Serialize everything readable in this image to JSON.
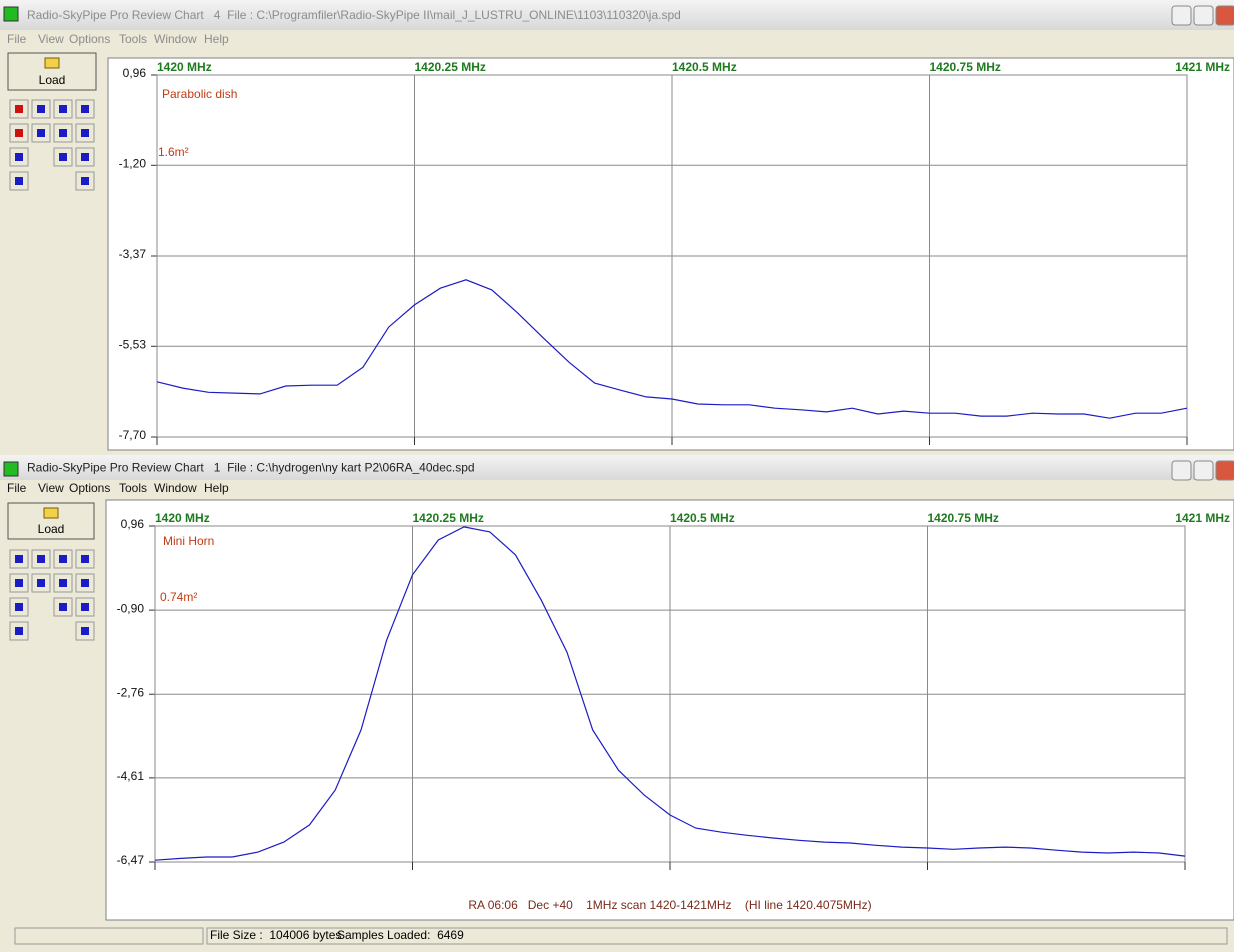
{
  "windows": [
    {
      "title": "Radio-SkyPipe Pro Review Chart   4  File : C:\\Programfiler\\Radio-SkyPipe II\\mail_J_LUSTRU_ONLINE\\1103\\110320\\ja.spd",
      "menu": [
        "File",
        "View",
        "Options",
        "Tools",
        "Window",
        "Help"
      ],
      "load_button": "Load"
    },
    {
      "title": "Radio-SkyPipe Pro Review Chart   1  File : C:\\hydrogen\\ny kart P2\\06RA_40dec.spd",
      "menu": [
        "File",
        "View",
        "Options",
        "Tools",
        "Window",
        "Help"
      ],
      "load_button": "Load"
    }
  ],
  "chart_data": [
    {
      "type": "line",
      "annotations": [
        "Parabolic dish",
        "1.6m²"
      ],
      "x": [
        1420,
        1420.025,
        1420.05,
        1420.075,
        1420.1,
        1420.125,
        1420.15,
        1420.175,
        1420.2,
        1420.225,
        1420.25,
        1420.275,
        1420.3,
        1420.325,
        1420.35,
        1420.375,
        1420.4,
        1420.425,
        1420.45,
        1420.475,
        1420.5,
        1420.525,
        1420.55,
        1420.575,
        1420.6,
        1420.625,
        1420.65,
        1420.675,
        1420.7,
        1420.725,
        1420.75,
        1420.775,
        1420.8,
        1420.825,
        1420.85,
        1420.875,
        1420.9,
        1420.925,
        1420.95,
        1420.975,
        1421
      ],
      "series": [
        {
          "color": "#1c1cc4",
          "values": [
            -6.38,
            -6.53,
            -6.63,
            -6.65,
            -6.67,
            -6.48,
            -6.46,
            -6.46,
            -6.03,
            -5.07,
            -4.54,
            -4.14,
            -3.94,
            -4.18,
            -4.73,
            -5.33,
            -5.91,
            -6.41,
            -6.58,
            -6.74,
            -6.79,
            -6.91,
            -6.93,
            -6.93,
            -7.01,
            -7.05,
            -7.1,
            -7.01,
            -7.15,
            -7.08,
            -7.13,
            -7.13,
            -7.2,
            -7.2,
            -7.13,
            -7.15,
            -7.15,
            -7.25,
            -7.13,
            -7.13,
            -7.01
          ]
        }
      ],
      "xlim": [
        1420,
        1421
      ],
      "xticks": [
        {
          "value": 1420,
          "label": "1420 MHz"
        },
        {
          "value": 1420.25,
          "label": "1420.25 MHz"
        },
        {
          "value": 1420.5,
          "label": "1420.5 MHz"
        },
        {
          "value": 1420.75,
          "label": "1420.75 MHz"
        },
        {
          "value": 1421,
          "label": "1421 MHz"
        }
      ],
      "ylim": [
        -7.7,
        0.96
      ],
      "yticks": [
        {
          "value": 0.96,
          "label": "0,96"
        },
        {
          "value": -1.2,
          "label": "-1,20"
        },
        {
          "value": -3.37,
          "label": "-3,37"
        },
        {
          "value": -5.53,
          "label": "-5,53"
        },
        {
          "value": -7.7,
          "label": "-7,70"
        }
      ],
      "grid": true
    },
    {
      "type": "line",
      "annotations": [
        "Mini Horn",
        "0.74m²"
      ],
      "footer": "RA 06:06   Dec +40    1MHz scan 1420-1421MHz    (HI line 1420.4075MHz)",
      "x": [
        1420,
        1420.025,
        1420.05,
        1420.075,
        1420.1,
        1420.125,
        1420.15,
        1420.175,
        1420.2,
        1420.225,
        1420.25,
        1420.275,
        1420.3,
        1420.325,
        1420.35,
        1420.375,
        1420.4,
        1420.425,
        1420.45,
        1420.475,
        1420.5,
        1420.525,
        1420.55,
        1420.575,
        1420.6,
        1420.625,
        1420.65,
        1420.675,
        1420.7,
        1420.725,
        1420.75,
        1420.775,
        1420.8,
        1420.825,
        1420.85,
        1420.875,
        1420.9,
        1420.925,
        1420.95,
        1420.975,
        1421
      ],
      "series": [
        {
          "color": "#1c1cc4",
          "values": [
            -6.43,
            -6.39,
            -6.36,
            -6.36,
            -6.25,
            -6.03,
            -5.65,
            -4.88,
            -3.55,
            -1.56,
            -0.12,
            0.65,
            0.94,
            0.83,
            0.32,
            -0.68,
            -1.83,
            -3.55,
            -4.44,
            -4.99,
            -5.43,
            -5.72,
            -5.81,
            -5.88,
            -5.94,
            -5.99,
            -6.03,
            -6.05,
            -6.1,
            -6.14,
            -6.16,
            -6.19,
            -6.16,
            -6.14,
            -6.16,
            -6.21,
            -6.25,
            -6.27,
            -6.25,
            -6.27,
            -6.34
          ]
        }
      ],
      "xlim": [
        1420,
        1421
      ],
      "xticks": [
        {
          "value": 1420,
          "label": "1420 MHz"
        },
        {
          "value": 1420.25,
          "label": "1420.25 MHz"
        },
        {
          "value": 1420.5,
          "label": "1420.5 MHz"
        },
        {
          "value": 1420.75,
          "label": "1420.75 MHz"
        },
        {
          "value": 1421,
          "label": "1421 MHz"
        }
      ],
      "ylim": [
        -6.47,
        0.96
      ],
      "yticks": [
        {
          "value": 0.96,
          "label": "0,96"
        },
        {
          "value": -0.9,
          "label": "-0,90"
        },
        {
          "value": -2.76,
          "label": "-2,76"
        },
        {
          "value": -4.61,
          "label": "-4,61"
        },
        {
          "value": -6.47,
          "label": "-6,47"
        }
      ],
      "grid": true
    }
  ],
  "status_bar": {
    "file_size": "File Size :  104006 bytes",
    "samples": "Samples Loaded:  6469"
  }
}
